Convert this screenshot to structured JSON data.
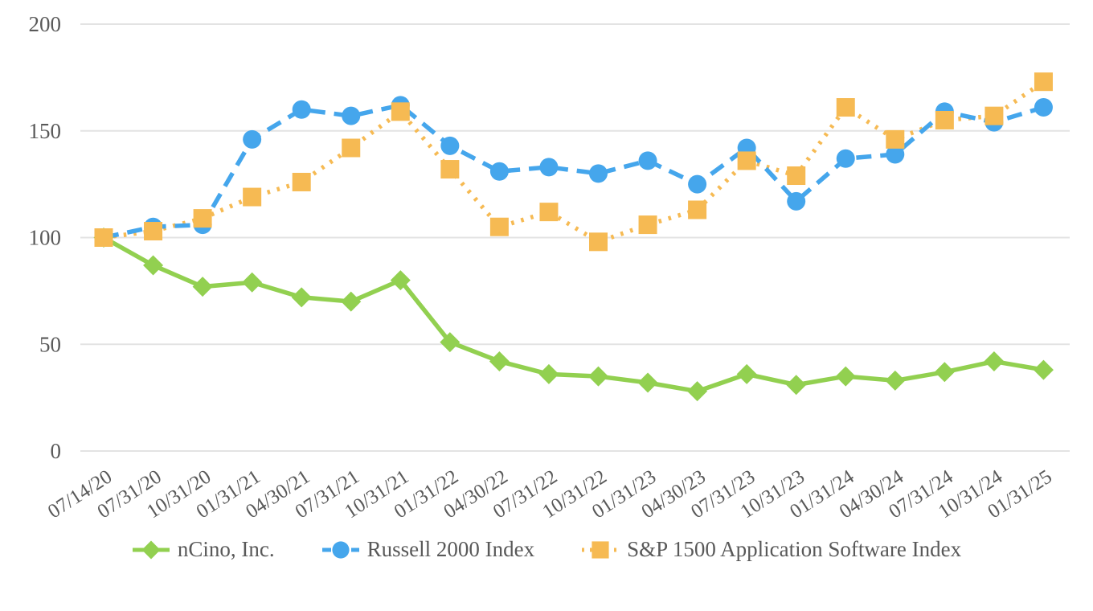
{
  "chart_data": {
    "type": "line",
    "title": "",
    "xlabel": "",
    "ylabel": "",
    "categories": [
      "07/14/20",
      "07/31/20",
      "10/31/20",
      "01/31/21",
      "04/30/21",
      "07/31/21",
      "10/31/21",
      "01/31/22",
      "04/30/22",
      "07/31/22",
      "10/31/22",
      "01/31/23",
      "04/30/23",
      "07/31/23",
      "10/31/23",
      "01/31/24",
      "04/30/24",
      "07/31/24",
      "10/31/24",
      "01/31/25"
    ],
    "series": [
      {
        "name": "nCino, Inc.",
        "color": "#92D050",
        "marker": "diamond",
        "line_style": "solid",
        "values": [
          100,
          87,
          77,
          79,
          72,
          70,
          80,
          51,
          42,
          36,
          35,
          32,
          28,
          36,
          31,
          35,
          33,
          37,
          42,
          38
        ]
      },
      {
        "name": "Russell 2000 Index",
        "color": "#45A6EC",
        "marker": "circle",
        "line_style": "dashed",
        "values": [
          100,
          105,
          106,
          146,
          160,
          157,
          162,
          143,
          131,
          133,
          130,
          136,
          125,
          142,
          117,
          137,
          139,
          159,
          154,
          161
        ]
      },
      {
        "name": "S&P 1500 Application Software Index",
        "color": "#F6BA53",
        "marker": "square",
        "line_style": "dotted",
        "values": [
          100,
          103,
          109,
          119,
          126,
          142,
          159,
          132,
          105,
          112,
          98,
          106,
          113,
          136,
          129,
          161,
          146,
          155,
          157,
          173
        ]
      }
    ],
    "ylim": [
      0,
      200
    ],
    "yticks": [
      "0",
      "50",
      "100",
      "150",
      "200"
    ],
    "grid": true,
    "legend_position": "bottom",
    "colors": {
      "axis_label": "#595959",
      "gridline": "#E3E3E3",
      "background": "#FFFFFF"
    }
  }
}
